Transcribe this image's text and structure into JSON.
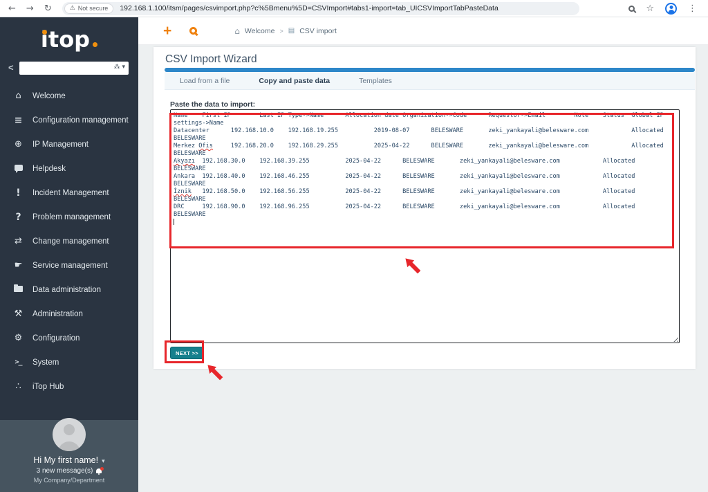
{
  "browser": {
    "security_label": "Not secure",
    "url": "192.168.1.100/itsm/pages/csvimport.php?c%5Bmenu%5D=CSVImport#tabs1-import=tab_UICSVImportTabPasteData"
  },
  "sidebar": {
    "logo_text": "itop",
    "items": [
      {
        "name": "welcome",
        "icon": "home-icon",
        "glyph": "⌂",
        "style": "",
        "label": "Welcome"
      },
      {
        "name": "configuration-management",
        "icon": "database-icon",
        "glyph": "≡",
        "style": "bang",
        "label": "Configuration management"
      },
      {
        "name": "ip-management",
        "icon": "globe-icon",
        "glyph": "⊕",
        "style": "",
        "label": "IP Management"
      },
      {
        "name": "helpdesk",
        "icon": "chat-bubble-icon",
        "glyph": "",
        "style": "",
        "css": "i-bubble",
        "label": "Helpdesk"
      },
      {
        "name": "incident-management",
        "icon": "exclamation-icon",
        "glyph": "!",
        "style": "bang",
        "label": "Incident Management"
      },
      {
        "name": "problem-management",
        "icon": "question-icon",
        "glyph": "?",
        "style": "bang",
        "label": "Problem management"
      },
      {
        "name": "change-management",
        "icon": "exchange-arrows-icon",
        "glyph": "⇄",
        "style": "",
        "label": "Change management"
      },
      {
        "name": "service-management",
        "icon": "handshake-icon",
        "glyph": "☛",
        "style": "",
        "label": "Service management"
      },
      {
        "name": "data-administration",
        "icon": "folder-icon",
        "glyph": "",
        "style": "",
        "css": "i-folder",
        "label": "Data administration"
      },
      {
        "name": "administration",
        "icon": "tools-icon",
        "glyph": "⚒",
        "style": "",
        "label": "Administration"
      },
      {
        "name": "configuration",
        "icon": "gear-icon",
        "glyph": "⚙",
        "style": "",
        "label": "Configuration"
      },
      {
        "name": "system",
        "icon": "terminal-icon",
        "glyph": ">_",
        "style": "txt",
        "label": "System"
      },
      {
        "name": "itop-hub",
        "icon": "share-icon",
        "glyph": "∴",
        "style": "",
        "label": "iTop Hub"
      }
    ],
    "user": {
      "greeting": "Hi My first name!",
      "messages": "3 new message(s)",
      "org": "My Company/Department"
    }
  },
  "header": {
    "breadcrumb": [
      {
        "label": "Welcome"
      },
      {
        "label": "CSV import"
      }
    ]
  },
  "main": {
    "title": "CSV Import Wizard",
    "tabs": [
      {
        "label": "Load from a file",
        "active": false
      },
      {
        "label": "Copy and paste data",
        "active": true
      },
      {
        "label": "Templates",
        "active": false
      }
    ],
    "paste_label": "Paste the data to import:",
    "textarea": {
      "lines": [
        "Name\tFirst IP\tLast IP\tType->Name\tAllocation date\tOrganization->Code\tRequestor->Email\tNote\tStatus\tGlobal IP",
        "settings->Name",
        "Datacenter\t192.168.10.0\t192.168.19.255\t\t2019-08-07\tBELESWARE\tzeki_yankayali@belesware.com\t\tAllocated",
        "BELESWARE",
        "Merkez Ofis\t192.168.20.0\t192.168.29.255\t\t2025-04-22\tBELESWARE\tzeki_yankayali@belesware.com\t\tAllocated",
        "BELESWARE",
        "Akyazı\t192.168.30.0\t192.168.39.255\t\t2025-04-22\tBELESWARE\tzeki_yankayali@belesware.com\t\tAllocated",
        "BELESWARE",
        "Ankara\t192.168.40.0\t192.168.46.255\t\t2025-04-22\tBELESWARE\tzeki_yankayali@belesware.com\t\tAllocated",
        "BELESWARE",
        "İznik\t192.168.50.0\t192.168.56.255\t\t2025-04-22\tBELESWARE\tzeki_yankayali@belesware.com\t\tAllocated",
        "BELESWARE",
        "DRC\t192.168.90.0\t192.168.96.255\t\t2025-04-22\tBELESWARE\tzeki_yankayali@belesware.com\t\tAllocated",
        "BELESWARE"
      ],
      "misspelled": [
        "Ofis",
        "Akyazı",
        "İznik"
      ]
    },
    "next_label": "NEXT >>"
  },
  "colors": {
    "brand_orange": "#ef820f",
    "tab_accent_blue": "#2d87c9",
    "button_teal": "#16808d",
    "annotation_red": "#e7262b",
    "sidebar_bg": "#2a3441"
  }
}
